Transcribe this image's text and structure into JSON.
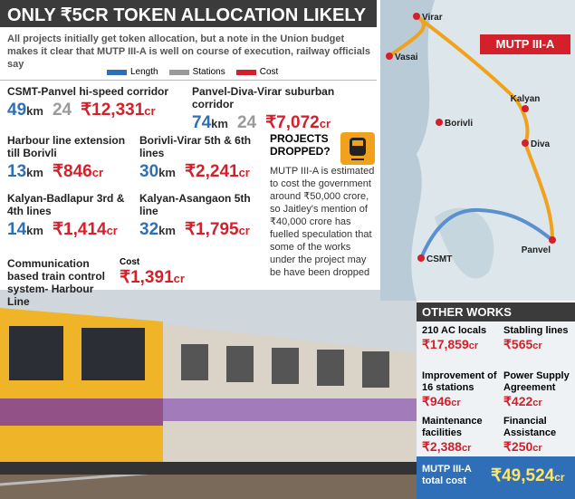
{
  "header": {
    "title": "ONLY ₹5CR TOKEN ALLOCATION LIKELY",
    "subtitle": "All projects initially get token allocation, but a note in the Union budget makes it clear that MUTP III-A is well on course of execution, railway officials say"
  },
  "legend": [
    {
      "label": "Length",
      "color": "#2f6fb8"
    },
    {
      "label": "Stations",
      "color": "#9a9a9a"
    },
    {
      "label": "Cost",
      "color": "#d3202b"
    }
  ],
  "units": {
    "length": "km",
    "cost": "cr"
  },
  "projects": [
    {
      "name": "CSMT-Panvel hi-speed corridor",
      "length": "49",
      "stations": "24",
      "cost": "₹12,331"
    },
    {
      "name": "Panvel-Diva-Virar suburban corridor",
      "length": "74",
      "stations": "24",
      "cost": "₹7,072"
    },
    {
      "name": "Harbour line extension till Borivli",
      "length": "13",
      "cost": "₹846"
    },
    {
      "name": "Borivli-Virar 5th & 6th lines",
      "length": "30",
      "cost": "₹2,241"
    },
    {
      "name": "Kalyan-Badlapur 3rd & 4th lines",
      "length": "14",
      "cost": "₹1,414"
    },
    {
      "name": "Kalyan-Asangaon 5th line",
      "length": "32",
      "cost": "₹1,795"
    },
    {
      "name": "Communication based train control system- Harbour Line",
      "cost_label": "Cost",
      "cost": "₹1,391"
    }
  ],
  "dropped": {
    "title": "PROJECTS DROPPED?",
    "text": "MUTP III-A is estimated to cost the government around ₹50,000 crore, so Jaitley's mention of ₹40,000 crore has fuelled speculation that some of the works under the project may be have been dropped"
  },
  "map": {
    "title": "MUTP III-A",
    "places": [
      "Virar",
      "Vasai",
      "Borivli",
      "Kalyan",
      "Diva",
      "CSMT",
      "Panvel"
    ]
  },
  "other_works": {
    "title": "OTHER WORKS",
    "items": [
      {
        "label": "210 AC locals",
        "cost": "₹17,859"
      },
      {
        "label": "Stabling lines",
        "cost": "₹565"
      },
      {
        "label": "Improvement of 16 stations",
        "cost": "₹946"
      },
      {
        "label": "Power Supply Agreement",
        "cost": "₹422"
      },
      {
        "label": "Maintenance facilities",
        "cost": "₹2,388"
      },
      {
        "label": "Financial Assistance",
        "cost": "₹250"
      }
    ],
    "total_label": "MUTP III-A total cost",
    "total": "₹49,524"
  }
}
